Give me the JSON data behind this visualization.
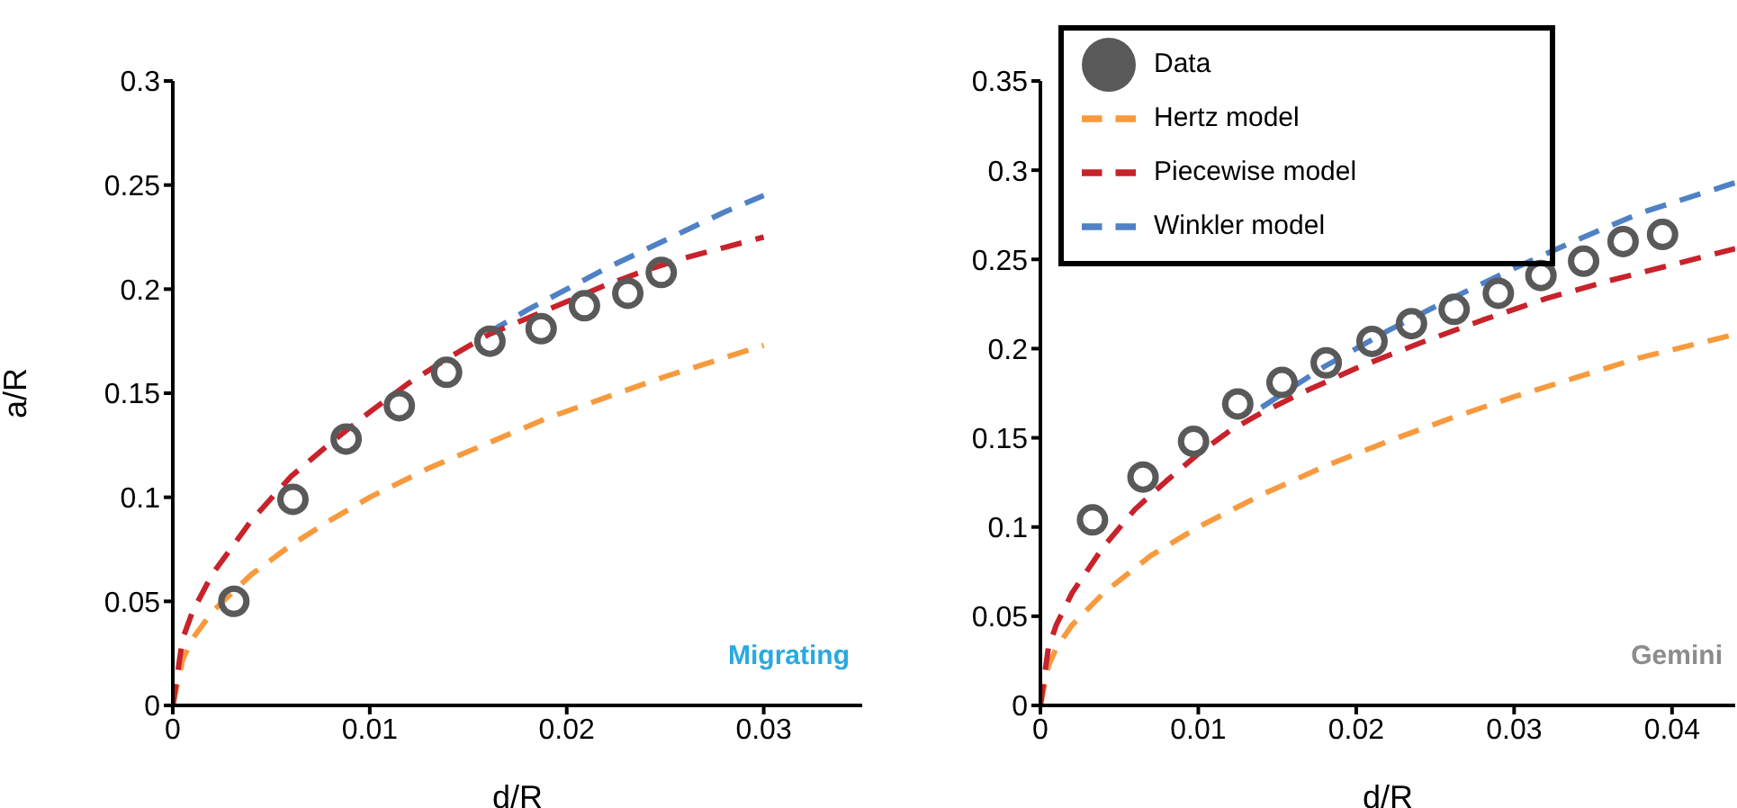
{
  "chart_data": [
    {
      "type": "line",
      "xlabel": "d/R",
      "ylabel": "a/R",
      "xlim": [
        0,
        0.035
      ],
      "xticks": [
        0,
        0.01,
        0.02,
        0.03
      ],
      "ylim": [
        0,
        0.3
      ],
      "yticks": [
        0,
        0.05,
        0.1,
        0.15,
        0.2,
        0.25,
        0.3
      ],
      "grid": false,
      "legend": false,
      "annotations": [
        "Migrating"
      ],
      "series": [
        {
          "type": "line",
          "color": "#f79a3e",
          "line_style": "dashed",
          "marker": "none",
          "x": [
            0,
            0.0005,
            0.001,
            0.002,
            0.004,
            0.006,
            0.008,
            0.01,
            0.013,
            0.016,
            0.019,
            0.022,
            0.025,
            0.028,
            0.03
          ],
          "values": [
            0,
            0.022,
            0.032,
            0.045,
            0.063,
            0.077,
            0.089,
            0.1,
            0.114,
            0.126,
            0.138,
            0.148,
            0.158,
            0.167,
            0.173
          ]
        },
        {
          "type": "line",
          "color": "#4f81c4",
          "line_style": "dashed",
          "marker": "none",
          "x": [
            0.016,
            0.018,
            0.02,
            0.022,
            0.024,
            0.026,
            0.028,
            0.03
          ],
          "values": [
            0.179,
            0.19,
            0.2,
            0.21,
            0.219,
            0.228,
            0.237,
            0.245
          ]
        },
        {
          "type": "line",
          "color": "#c8222b",
          "line_style": "dashed",
          "marker": "none",
          "x": [
            0,
            0.0005,
            0.001,
            0.002,
            0.004,
            0.006,
            0.008,
            0.01,
            0.012,
            0.014,
            0.016,
            0.018,
            0.02,
            0.022,
            0.024,
            0.026,
            0.028,
            0.03
          ],
          "values": [
            0,
            0.032,
            0.045,
            0.063,
            0.089,
            0.11,
            0.126,
            0.141,
            0.155,
            0.167,
            0.178,
            0.186,
            0.194,
            0.202,
            0.209,
            0.215,
            0.22,
            0.225
          ]
        },
        {
          "type": "scatter",
          "color": "#595959",
          "marker": "circle",
          "x": [
            0.0031,
            0.0061,
            0.0088,
            0.0115,
            0.0139,
            0.0161,
            0.0187,
            0.0209,
            0.0231,
            0.0248
          ],
          "values": [
            0.05,
            0.099,
            0.128,
            0.144,
            0.16,
            0.175,
            0.181,
            0.192,
            0.198,
            0.208
          ]
        }
      ]
    },
    {
      "type": "line",
      "xlabel": "d/R",
      "xlim": [
        0,
        0.044
      ],
      "xticks": [
        0,
        0.01,
        0.02,
        0.03,
        0.04
      ],
      "ylim": [
        0,
        0.35
      ],
      "yticks": [
        0,
        0.05,
        0.1,
        0.15,
        0.2,
        0.25,
        0.3,
        0.35
      ],
      "grid": false,
      "legend": "top left",
      "annotations": [
        "Gemini"
      ],
      "series": [
        {
          "type": "scatter",
          "name": "Data",
          "color": "#595959",
          "marker": "circle",
          "x": [
            0.0033,
            0.0065,
            0.0097,
            0.0125,
            0.0153,
            0.0181,
            0.021,
            0.0235,
            0.0262,
            0.029,
            0.0317,
            0.0344,
            0.0369,
            0.0394
          ],
          "values": [
            0.104,
            0.128,
            0.148,
            0.169,
            0.181,
            0.192,
            0.204,
            0.214,
            0.222,
            0.231,
            0.241,
            0.249,
            0.26,
            0.264
          ]
        },
        {
          "type": "line",
          "name": "Hertz model",
          "color": "#f79a3e",
          "line_style": "dashed",
          "marker": "none",
          "x": [
            0,
            0.0005,
            0.001,
            0.002,
            0.004,
            0.007,
            0.01,
            0.014,
            0.018,
            0.022,
            0.026,
            0.03,
            0.034,
            0.038,
            0.044
          ],
          "values": [
            0,
            0.022,
            0.032,
            0.045,
            0.063,
            0.084,
            0.1,
            0.118,
            0.134,
            0.148,
            0.161,
            0.173,
            0.184,
            0.195,
            0.208
          ]
        },
        {
          "type": "line",
          "name": "Winkler model",
          "color": "#4f81c4",
          "line_style": "dashed",
          "marker": "none",
          "x": [
            0.014,
            0.018,
            0.022,
            0.026,
            0.03,
            0.034,
            0.038,
            0.044
          ],
          "values": [
            0.167,
            0.19,
            0.21,
            0.228,
            0.245,
            0.261,
            0.276,
            0.293
          ]
        },
        {
          "type": "line",
          "name": "Piecewise model",
          "color": "#c8222b",
          "line_style": "dashed",
          "marker": "none",
          "x": [
            0,
            0.0005,
            0.001,
            0.002,
            0.004,
            0.006,
            0.008,
            0.01,
            0.012,
            0.014,
            0.017,
            0.02,
            0.024,
            0.028,
            0.032,
            0.036,
            0.04,
            0.044
          ],
          "values": [
            0,
            0.032,
            0.045,
            0.063,
            0.089,
            0.11,
            0.126,
            0.141,
            0.154,
            0.164,
            0.177,
            0.189,
            0.203,
            0.216,
            0.228,
            0.238,
            0.247,
            0.256
          ]
        }
      ]
    }
  ]
}
